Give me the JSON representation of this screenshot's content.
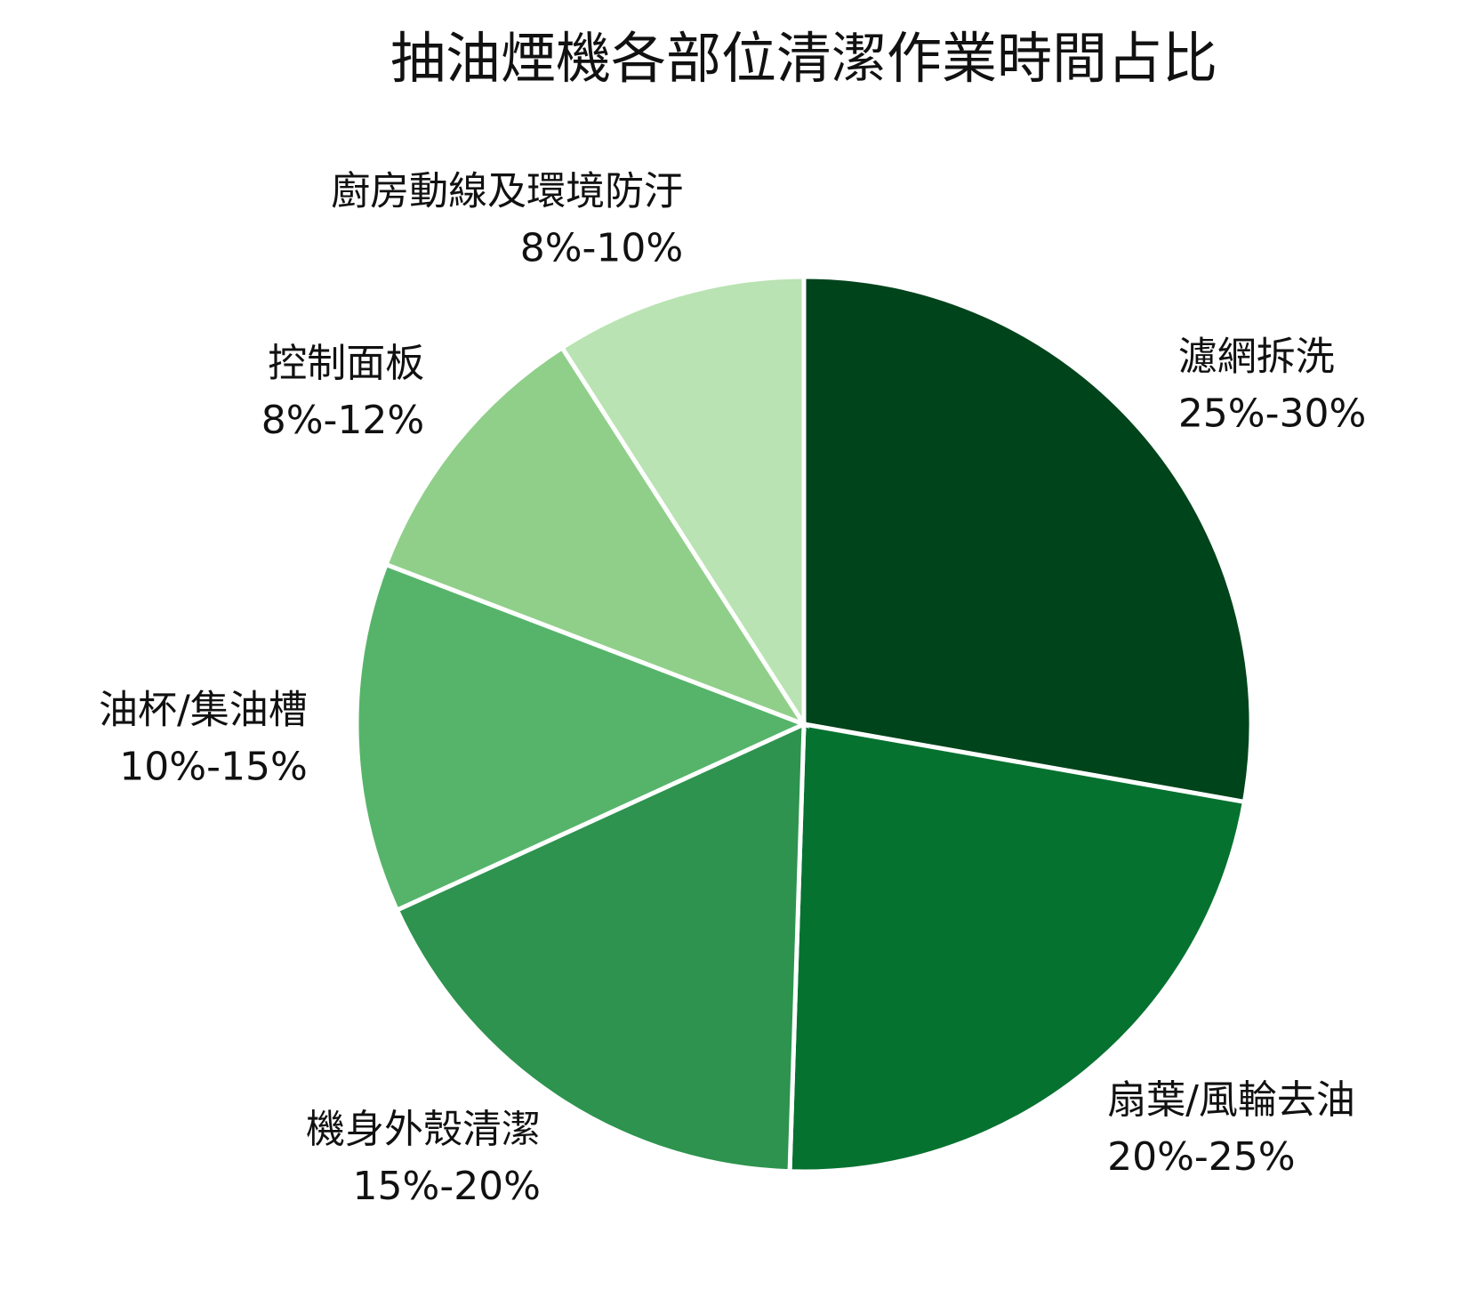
{
  "chart_data": {
    "type": "pie",
    "title": "抽油煙機各部位清潔作業時間占比",
    "categories": [
      "濾網拆洗",
      "扇葉/風輪去油",
      "機身外殼清潔",
      "油杯/集油槽",
      "控制面板",
      "廚房動線及環境防汙"
    ],
    "ranges": [
      [
        25,
        30
      ],
      [
        20,
        25
      ],
      [
        15,
        20
      ],
      [
        10,
        15
      ],
      [
        8,
        12
      ],
      [
        8,
        10
      ]
    ],
    "value_labels": [
      "25%-30%",
      "20%-25%",
      "15%-20%",
      "10%-15%",
      "8%-12%",
      "8%-10%"
    ],
    "colors": [
      "#00441b",
      "#067230",
      "#2d934e",
      "#56b46a",
      "#90cf8a",
      "#b9e3b2"
    ]
  }
}
